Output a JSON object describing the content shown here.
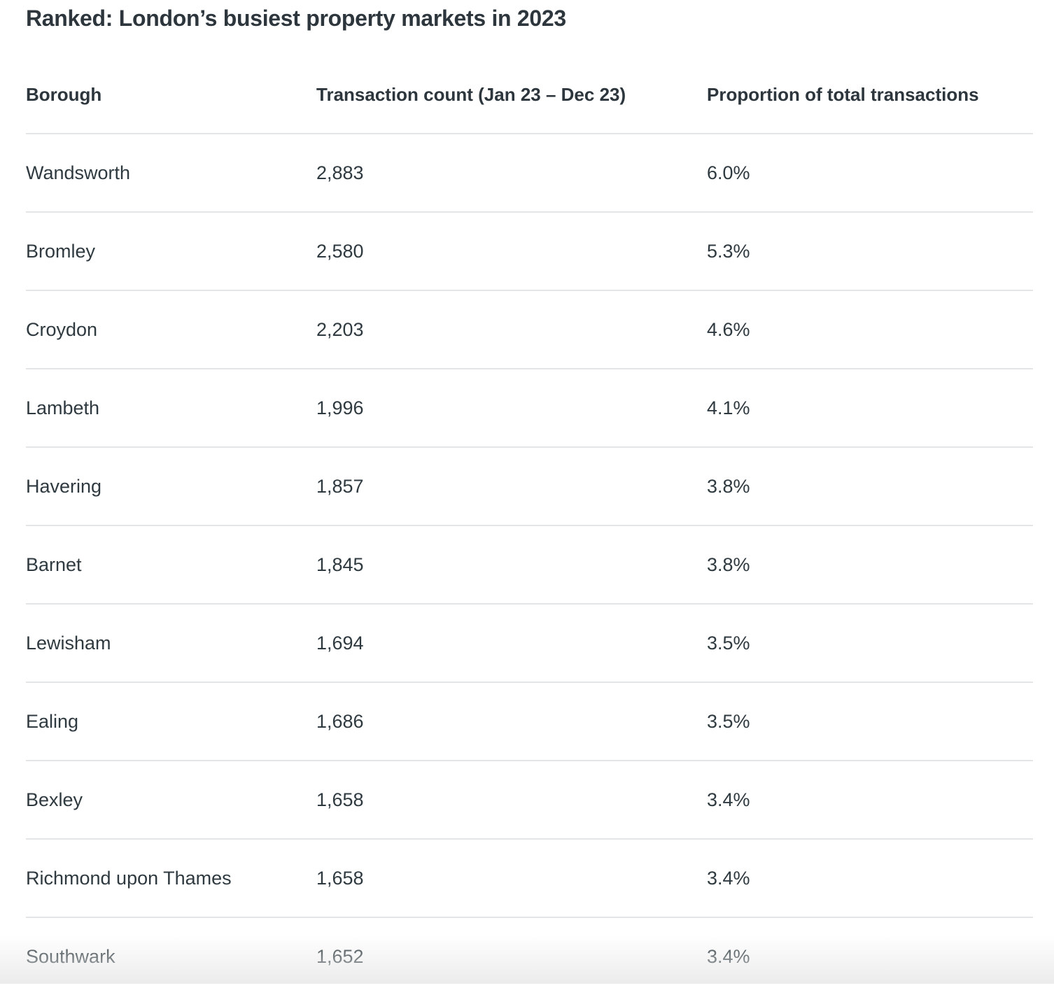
{
  "title": "Ranked: London’s busiest property markets in 2023",
  "table": {
    "headers": {
      "borough": "Borough",
      "count": "Transaction count (Jan 23 – Dec 23)",
      "proportion": "Proportion of total transactions"
    },
    "rows": [
      {
        "borough": "Wandsworth",
        "count": "2,883",
        "proportion": "6.0%"
      },
      {
        "borough": "Bromley",
        "count": "2,580",
        "proportion": "5.3%"
      },
      {
        "borough": "Croydon",
        "count": "2,203",
        "proportion": "4.6%"
      },
      {
        "borough": "Lambeth",
        "count": "1,996",
        "proportion": "4.1%"
      },
      {
        "borough": "Havering",
        "count": "1,857",
        "proportion": "3.8%"
      },
      {
        "borough": "Barnet",
        "count": "1,845",
        "proportion": "3.8%"
      },
      {
        "borough": "Lewisham",
        "count": "1,694",
        "proportion": "3.5%"
      },
      {
        "borough": "Ealing",
        "count": "1,686",
        "proportion": "3.5%"
      },
      {
        "borough": "Bexley",
        "count": "1,658",
        "proportion": "3.4%"
      },
      {
        "borough": "Richmond upon Thames",
        "count": "1,658",
        "proportion": "3.4%"
      },
      {
        "borough": "Southwark",
        "count": "1,652",
        "proportion": "3.4%"
      }
    ]
  },
  "colors": {
    "text": "#2f3a40",
    "heading": "#2c363c",
    "divider": "#e3e5e6",
    "background": "#ffffff"
  }
}
